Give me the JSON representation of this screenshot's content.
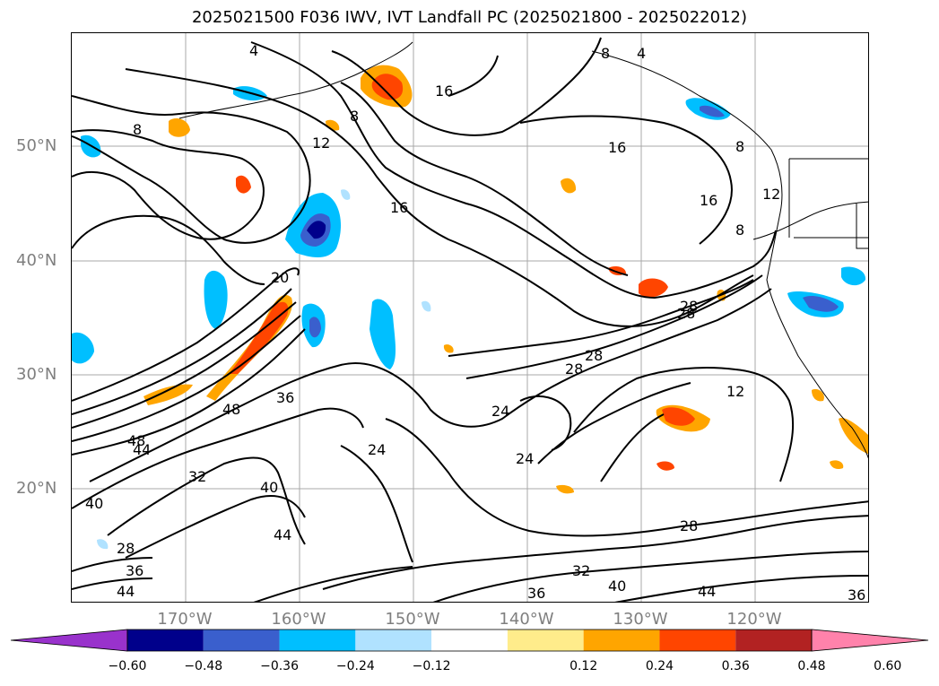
{
  "title": "2025021500 F036 IWV, IVT Landfall PC (2025021800 - 2025022012)",
  "lat_labels": [
    "50°N",
    "40°N",
    "30°N",
    "20°N"
  ],
  "lon_labels": [
    "170°W",
    "160°W",
    "150°W",
    "140°W",
    "130°W",
    "120°W"
  ],
  "colorbar": {
    "ticks": [
      "−0.60",
      "−0.48",
      "−0.36",
      "−0.24",
      "−0.12",
      "0.12",
      "0.24",
      "0.36",
      "0.48",
      "0.60"
    ],
    "colors": [
      "#9932cc",
      "#00008b",
      "#3a5fcd",
      "#00bfff",
      "#b0e2ff",
      "#ffffff",
      "#ffec8b",
      "#ffa500",
      "#ff4500",
      "#b22222",
      "#ff82ab"
    ]
  },
  "contour_labels": [
    "4",
    "4",
    "8",
    "8",
    "8",
    "8",
    "12",
    "12",
    "12",
    "16",
    "16",
    "16",
    "16",
    "20",
    "24",
    "24",
    "24",
    "28",
    "28",
    "28",
    "28",
    "28",
    "32",
    "32",
    "36",
    "36",
    "36",
    "36",
    "40",
    "40",
    "40",
    "44",
    "44",
    "44",
    "44",
    "48",
    "48",
    "28",
    "8"
  ]
}
